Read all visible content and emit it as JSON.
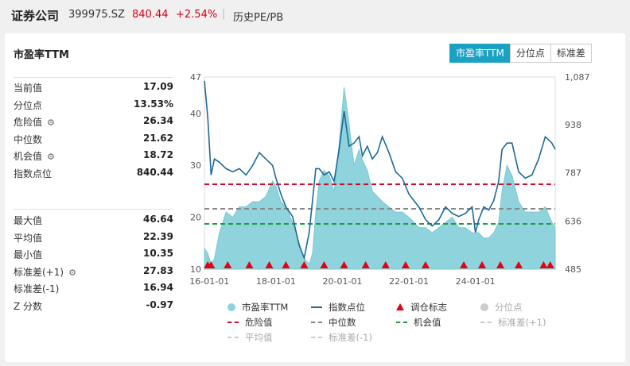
{
  "header": {
    "name": "证券公司",
    "code": "399975.SZ",
    "price": "840.44",
    "change": "+2.54%",
    "history": "历史PE/PB"
  },
  "card": {
    "title": "市盈率TTM",
    "tabs": [
      "市盈率TTM",
      "分位点",
      "标准差"
    ]
  },
  "stats_top": [
    {
      "label": "当前值",
      "value": "17.09",
      "gear": false
    },
    {
      "label": "分位点",
      "value": "13.53%",
      "gear": false
    },
    {
      "label": "危险值",
      "value": "26.34",
      "gear": true
    },
    {
      "label": "中位数",
      "value": "21.62",
      "gear": false
    },
    {
      "label": "机会值",
      "value": "18.72",
      "gear": true
    },
    {
      "label": "指数点位",
      "value": "840.44",
      "gear": false
    }
  ],
  "stats_bottom": [
    {
      "label": "最大值",
      "value": "46.64",
      "gear": false
    },
    {
      "label": "平均值",
      "value": "22.39",
      "gear": false
    },
    {
      "label": "最小值",
      "value": "10.35",
      "gear": false
    },
    {
      "label": "标准差(+1)",
      "value": "27.83",
      "gear": true
    },
    {
      "label": "标准差(-1)",
      "value": "16.94",
      "gear": false
    },
    {
      "label": "Z 分数",
      "value": "-0.97",
      "gear": false
    }
  ],
  "legend": {
    "pe": "市盈率TTM",
    "index": "指数点位",
    "rebalance": "调仓标志",
    "percentile": "分位点",
    "danger": "危险值",
    "median": "中位数",
    "opportunity": "机会值",
    "std_plus": "标准差(+1)",
    "mean": "平均值",
    "std_minus": "标准差(-1)"
  },
  "chart_data": {
    "type": "area",
    "x_ticks": [
      "16-01-01",
      "18-01-01",
      "20-01-01",
      "22-01-01",
      "24-01-01"
    ],
    "y_left_ticks": [
      10,
      20,
      30,
      40,
      47
    ],
    "y_left_range": [
      10,
      47
    ],
    "y_right_ticks": [
      "485",
      "636",
      "787",
      "938",
      "1,087"
    ],
    "y_right_range": [
      485,
      1087
    ],
    "x_range": [
      2015.85,
      2026.4
    ],
    "reference_lines": {
      "danger": 26.34,
      "median": 21.62,
      "opportunity": 18.72
    },
    "series": [
      {
        "name": "市盈率TTM",
        "axis": "left",
        "x": [
          2015.85,
          2015.95,
          2016.05,
          2016.15,
          2016.3,
          2016.5,
          2016.7,
          2016.9,
          2017.1,
          2017.3,
          2017.5,
          2017.7,
          2017.9,
          2018.0,
          2018.15,
          2018.3,
          2018.5,
          2018.7,
          2018.85,
          2019.0,
          2019.1,
          2019.2,
          2019.3,
          2019.45,
          2019.6,
          2019.75,
          2019.9,
          2020.05,
          2020.2,
          2020.35,
          2020.5,
          2020.6,
          2020.75,
          2020.9,
          2021.05,
          2021.2,
          2021.4,
          2021.6,
          2021.8,
          2022.0,
          2022.15,
          2022.3,
          2022.5,
          2022.7,
          2022.9,
          2023.1,
          2023.3,
          2023.5,
          2023.7,
          2023.9,
          2024.0,
          2024.1,
          2024.25,
          2024.4,
          2024.55,
          2024.7,
          2024.8,
          2024.95,
          2025.1,
          2025.3,
          2025.5,
          2025.7,
          2025.9,
          2026.1,
          2026.3,
          2026.4
        ],
        "values": [
          14,
          13,
          11,
          12,
          17,
          21,
          20,
          22,
          22,
          23,
          23,
          24,
          27,
          26,
          23,
          22,
          19,
          15,
          12,
          11,
          13,
          21,
          27,
          29,
          28,
          25,
          34,
          45,
          38,
          30,
          33,
          31,
          29,
          25,
          24,
          23,
          22,
          21,
          21,
          20,
          19,
          18,
          18,
          17,
          18,
          19,
          20,
          18,
          18,
          17,
          17,
          17,
          16,
          16,
          17,
          19,
          25,
          30,
          28,
          23,
          21,
          21,
          21,
          22,
          19,
          18
        ]
      },
      {
        "name": "指数点位",
        "axis": "right",
        "x": [
          2015.85,
          2015.95,
          2016.05,
          2016.15,
          2016.3,
          2016.5,
          2016.7,
          2016.9,
          2017.1,
          2017.3,
          2017.5,
          2017.7,
          2017.9,
          2018.0,
          2018.15,
          2018.3,
          2018.5,
          2018.7,
          2018.85,
          2019.0,
          2019.1,
          2019.2,
          2019.3,
          2019.45,
          2019.6,
          2019.75,
          2019.9,
          2020.05,
          2020.2,
          2020.35,
          2020.5,
          2020.6,
          2020.75,
          2020.9,
          2021.05,
          2021.2,
          2021.4,
          2021.6,
          2021.8,
          2022.0,
          2022.15,
          2022.3,
          2022.5,
          2022.7,
          2022.9,
          2023.1,
          2023.3,
          2023.5,
          2023.7,
          2023.9,
          2024.0,
          2024.1,
          2024.25,
          2024.4,
          2024.55,
          2024.7,
          2024.8,
          2024.95,
          2025.1,
          2025.3,
          2025.5,
          2025.7,
          2025.9,
          2026.1,
          2026.3,
          2026.4
        ],
        "values": [
          1075,
          960,
          780,
          830,
          820,
          800,
          790,
          800,
          780,
          810,
          850,
          830,
          810,
          770,
          720,
          680,
          650,
          560,
          520,
          600,
          700,
          800,
          800,
          780,
          790,
          760,
          860,
          980,
          870,
          880,
          900,
          840,
          870,
          830,
          850,
          900,
          850,
          790,
          770,
          720,
          700,
          680,
          640,
          620,
          640,
          680,
          660,
          650,
          660,
          680,
          600,
          640,
          680,
          670,
          700,
          760,
          860,
          880,
          880,
          790,
          770,
          780,
          830,
          900,
          880,
          860
        ]
      }
    ],
    "rebalance_markers_x": [
      2015.95,
      2016.05,
      2016.55,
      2017.2,
      2017.8,
      2018.3,
      2018.85,
      2019.45,
      2020.05,
      2020.7,
      2021.3,
      2021.9,
      2022.5,
      2023.65,
      2024.2,
      2024.75,
      2025.3,
      2026.05,
      2026.25
    ]
  }
}
